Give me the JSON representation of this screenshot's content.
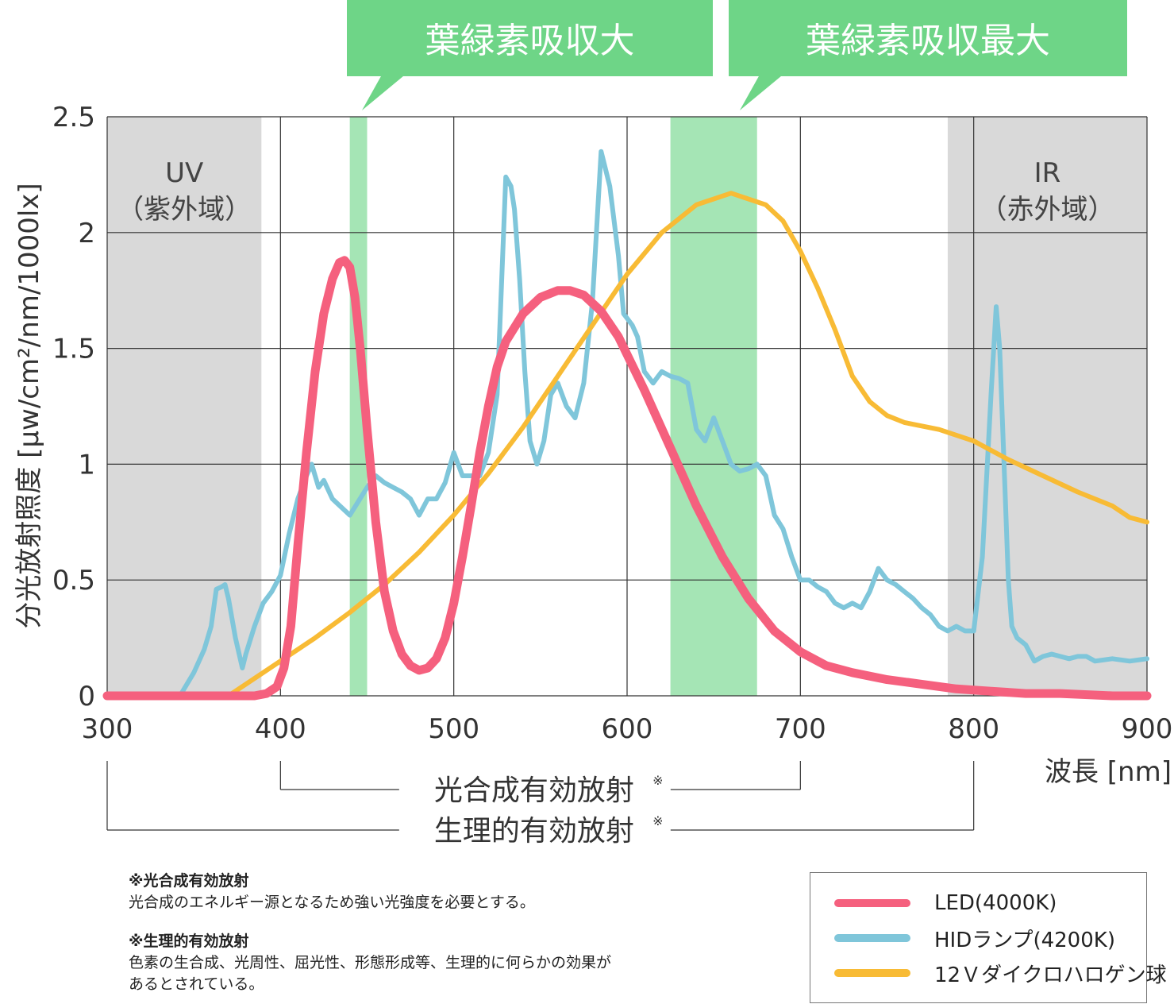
{
  "chart_data": {
    "type": "line",
    "ylabel": "分光放射照度 [μw/cm²/nm/1000lx]",
    "xlabel": "波長 [nm]",
    "xlim": [
      300,
      900
    ],
    "ylim": [
      0,
      2.5
    ],
    "x_ticks": [
      "300",
      "400",
      "500",
      "600",
      "700",
      "800",
      "900"
    ],
    "y_ticks": [
      "0",
      "0.5",
      "1",
      "1.5",
      "2",
      "2.5"
    ],
    "grid": true,
    "regions": [
      {
        "name": "UV",
        "sub": "（紫外域）",
        "from": 300,
        "to": 389,
        "color": "#d9d9d9"
      },
      {
        "name": "IR",
        "sub": "（赤外域）",
        "from": 785,
        "to": 900,
        "color": "#d9d9d9"
      }
    ],
    "absorption_bands": [
      {
        "from": 440,
        "to": 450,
        "color": "#a5e5b5",
        "callout": "葉緑素吸収大"
      },
      {
        "from": 625,
        "to": 675,
        "color": "#a5e5b5",
        "callout": "葉緑素吸収最大"
      }
    ],
    "callout_color": "#6ed587",
    "ranges": [
      {
        "label": "光合成有効放射",
        "mark": "※",
        "from": 400,
        "to": 700
      },
      {
        "label": "生理的有効放射",
        "mark": "※",
        "from": 300,
        "to": 800
      }
    ],
    "series": [
      {
        "name": "LED(4000K)",
        "color": "#f5607e",
        "x": [
          300,
          385,
          392,
          398,
          402,
          406,
          410,
          415,
          420,
          425,
          430,
          434,
          437,
          440,
          443,
          446,
          450,
          455,
          460,
          465,
          470,
          475,
          480,
          485,
          490,
          495,
          500,
          505,
          510,
          515,
          520,
          525,
          530,
          540,
          550,
          560,
          567,
          575,
          585,
          595,
          610,
          625,
          640,
          655,
          670,
          685,
          700,
          715,
          730,
          750,
          770,
          790,
          810,
          830,
          850,
          880,
          900
        ],
        "y": [
          0,
          0,
          0.01,
          0.04,
          0.12,
          0.3,
          0.65,
          1.05,
          1.4,
          1.65,
          1.8,
          1.87,
          1.88,
          1.85,
          1.72,
          1.5,
          1.15,
          0.75,
          0.45,
          0.28,
          0.18,
          0.13,
          0.11,
          0.12,
          0.16,
          0.25,
          0.4,
          0.6,
          0.82,
          1.05,
          1.25,
          1.42,
          1.53,
          1.65,
          1.72,
          1.75,
          1.75,
          1.73,
          1.66,
          1.55,
          1.32,
          1.07,
          0.82,
          0.6,
          0.42,
          0.28,
          0.19,
          0.13,
          0.1,
          0.07,
          0.05,
          0.03,
          0.02,
          0.01,
          0.01,
          0,
          0
        ]
      },
      {
        "name": "HIDランプ(4200K)",
        "color": "#7fc6da",
        "x": [
          342,
          350,
          356,
          360,
          363,
          366,
          368,
          370,
          374,
          378,
          380,
          385,
          390,
          395,
          400,
          405,
          410,
          415,
          418,
          422,
          425,
          430,
          440,
          450,
          455,
          460,
          465,
          470,
          475,
          480,
          485,
          490,
          495,
          500,
          505,
          510,
          515,
          520,
          525,
          530,
          533,
          535,
          538,
          541,
          544,
          548,
          552,
          556,
          560,
          565,
          570,
          575,
          580,
          585,
          590,
          595,
          598,
          600,
          603,
          606,
          610,
          615,
          618,
          620,
          625,
          630,
          635,
          640,
          645,
          650,
          655,
          660,
          665,
          670,
          675,
          680,
          685,
          690,
          695,
          700,
          705,
          710,
          715,
          720,
          725,
          730,
          735,
          740,
          745,
          750,
          755,
          760,
          765,
          770,
          775,
          780,
          785,
          790,
          795,
          800,
          805,
          810,
          813,
          815,
          818,
          820,
          822,
          825,
          830,
          835,
          840,
          845,
          850,
          855,
          860,
          865,
          870,
          880,
          890,
          900
        ],
        "y": [
          0,
          0.1,
          0.2,
          0.3,
          0.46,
          0.47,
          0.48,
          0.42,
          0.25,
          0.12,
          0.18,
          0.3,
          0.4,
          0.45,
          0.52,
          0.7,
          0.85,
          0.95,
          1.0,
          0.9,
          0.93,
          0.85,
          0.78,
          0.9,
          0.95,
          0.92,
          0.9,
          0.88,
          0.85,
          0.78,
          0.85,
          0.85,
          0.92,
          1.05,
          0.95,
          0.95,
          0.95,
          1.05,
          1.3,
          2.24,
          2.2,
          2.1,
          1.8,
          1.4,
          1.1,
          1.0,
          1.1,
          1.3,
          1.35,
          1.25,
          1.2,
          1.35,
          1.7,
          2.35,
          2.2,
          1.9,
          1.65,
          1.63,
          1.6,
          1.55,
          1.4,
          1.35,
          1.38,
          1.4,
          1.38,
          1.37,
          1.35,
          1.15,
          1.1,
          1.2,
          1.1,
          1.0,
          0.97,
          0.98,
          1.0,
          0.95,
          0.78,
          0.72,
          0.6,
          0.5,
          0.5,
          0.47,
          0.45,
          0.4,
          0.38,
          0.4,
          0.38,
          0.45,
          0.55,
          0.5,
          0.48,
          0.45,
          0.42,
          0.38,
          0.35,
          0.3,
          0.28,
          0.3,
          0.28,
          0.28,
          0.6,
          1.3,
          1.68,
          1.5,
          0.9,
          0.5,
          0.3,
          0.25,
          0.22,
          0.15,
          0.17,
          0.18,
          0.17,
          0.16,
          0.17,
          0.17,
          0.15,
          0.16,
          0.15,
          0.16
        ]
      },
      {
        "name": "12Ｖダイクロハロゲン球",
        "color": "#f8bb35",
        "x": [
          370,
          380,
          400,
          420,
          440,
          460,
          480,
          500,
          520,
          540,
          560,
          580,
          600,
          620,
          640,
          660,
          680,
          690,
          700,
          710,
          720,
          730,
          740,
          750,
          760,
          780,
          800,
          820,
          840,
          860,
          880,
          890,
          900
        ],
        "y": [
          0,
          0.05,
          0.15,
          0.25,
          0.36,
          0.48,
          0.62,
          0.78,
          0.96,
          1.16,
          1.38,
          1.6,
          1.82,
          2.0,
          2.12,
          2.17,
          2.12,
          2.05,
          1.92,
          1.76,
          1.58,
          1.38,
          1.27,
          1.21,
          1.18,
          1.15,
          1.1,
          1.02,
          0.95,
          0.88,
          0.82,
          0.77,
          0.75
        ]
      }
    ]
  },
  "notes": [
    {
      "title": "※光合成有効放射",
      "body": "光合成のエネルギー源となるため強い光強度を必要とする。"
    },
    {
      "title": "※生理的有効放射",
      "body": "色素の生合成、光周性、屈光性、形態形成等、生理的に何らかの効果が",
      "body2": "あるとされている。"
    }
  ]
}
